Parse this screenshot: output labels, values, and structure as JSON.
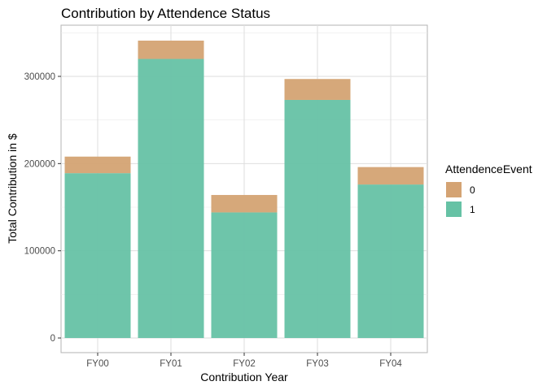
{
  "chart_data": {
    "type": "bar",
    "stacked": true,
    "title": "Contribution by Attendence Status",
    "xlabel": "Contribution Year",
    "ylabel": "Total Contribution in $",
    "categories": [
      "FY00",
      "FY01",
      "FY02",
      "FY03",
      "FY04"
    ],
    "series": [
      {
        "name": "1",
        "color": "#66C2A5",
        "values": [
          189000,
          320000,
          144000,
          273000,
          176000
        ]
      },
      {
        "name": "0",
        "color": "#D4A373",
        "values": [
          19000,
          21000,
          20000,
          24000,
          20000
        ]
      }
    ],
    "ylim": [
      0,
      350000
    ],
    "yticks": [
      0,
      100000,
      200000,
      300000
    ],
    "ytick_labels": [
      "0",
      "100000",
      "200000",
      "300000"
    ],
    "grid": true,
    "legend": {
      "title": "AttendenceEvent",
      "position": "right",
      "items": [
        {
          "label": "0",
          "color": "#D4A373"
        },
        {
          "label": "1",
          "color": "#66C2A5"
        }
      ]
    }
  }
}
